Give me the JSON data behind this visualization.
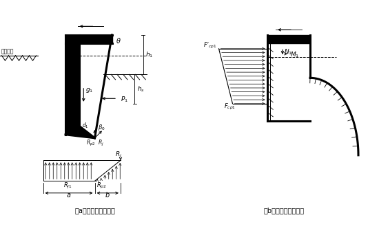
{
  "title_a": "（a）竖向的向外弯曲",
  "title_b": "（b）竖向的向内弯曲",
  "bg_color": "#ffffff",
  "fig_width": 5.5,
  "fig_height": 3.55,
  "lw_thick": 2.2,
  "lw_med": 1.0,
  "lw_thin": 0.7
}
